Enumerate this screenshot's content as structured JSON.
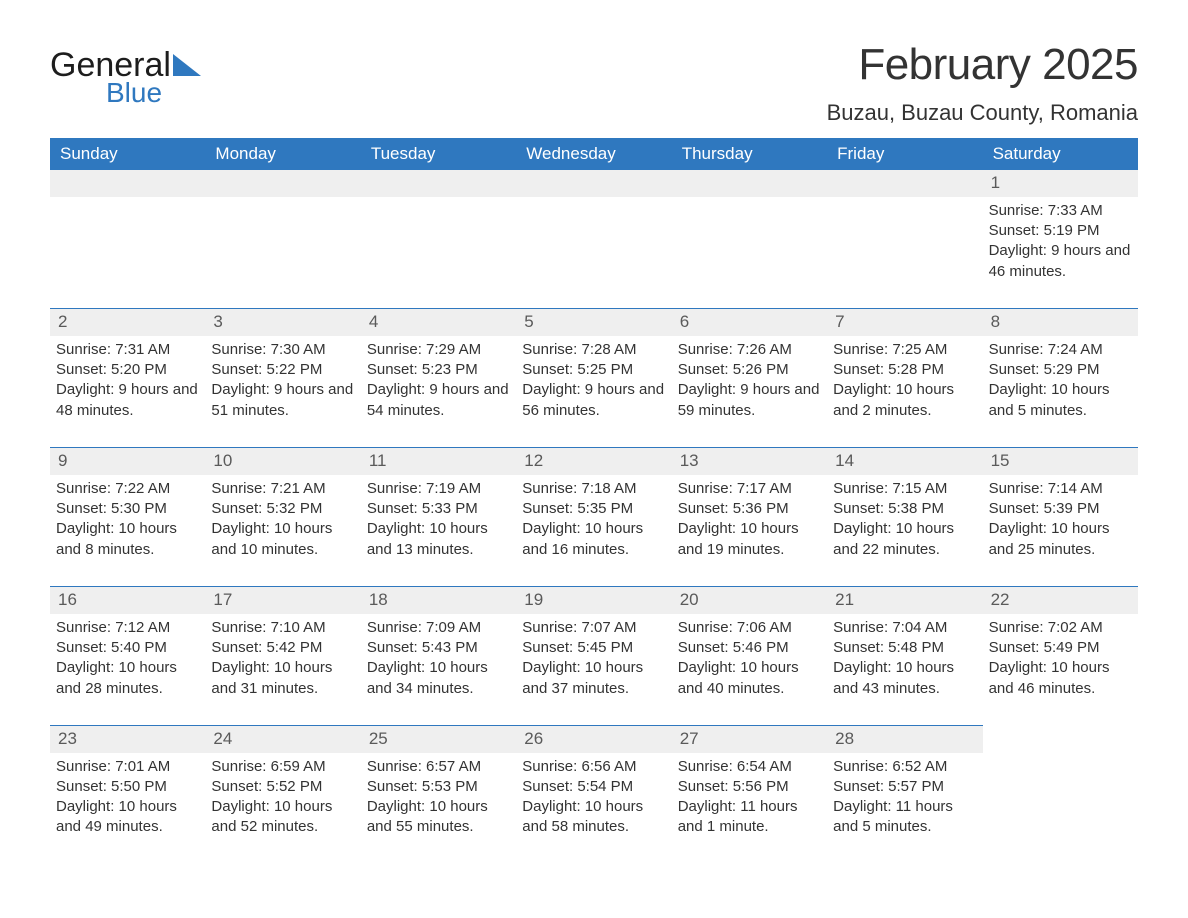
{
  "logo": {
    "word1": "General",
    "word2": "Blue",
    "accent_color": "#2f78bf"
  },
  "title": {
    "month": "February 2025",
    "location": "Buzau, Buzau County, Romania"
  },
  "colors": {
    "header_bg": "#2f78bf",
    "header_fg": "#ffffff",
    "daynum_bg": "#efefef",
    "daynum_border": "#2f78bf",
    "text": "#333333",
    "page_bg": "#ffffff"
  },
  "days_of_week": [
    "Sunday",
    "Monday",
    "Tuesday",
    "Wednesday",
    "Thursday",
    "Friday",
    "Saturday"
  ],
  "weeks": [
    [
      {
        "empty": true
      },
      {
        "empty": true
      },
      {
        "empty": true
      },
      {
        "empty": true
      },
      {
        "empty": true
      },
      {
        "empty": true
      },
      {
        "n": "1",
        "sunrise": "Sunrise: 7:33 AM",
        "sunset": "Sunset: 5:19 PM",
        "daylight": "Daylight: 9 hours and 46 minutes."
      }
    ],
    [
      {
        "n": "2",
        "sunrise": "Sunrise: 7:31 AM",
        "sunset": "Sunset: 5:20 PM",
        "daylight": "Daylight: 9 hours and 48 minutes."
      },
      {
        "n": "3",
        "sunrise": "Sunrise: 7:30 AM",
        "sunset": "Sunset: 5:22 PM",
        "daylight": "Daylight: 9 hours and 51 minutes."
      },
      {
        "n": "4",
        "sunrise": "Sunrise: 7:29 AM",
        "sunset": "Sunset: 5:23 PM",
        "daylight": "Daylight: 9 hours and 54 minutes."
      },
      {
        "n": "5",
        "sunrise": "Sunrise: 7:28 AM",
        "sunset": "Sunset: 5:25 PM",
        "daylight": "Daylight: 9 hours and 56 minutes."
      },
      {
        "n": "6",
        "sunrise": "Sunrise: 7:26 AM",
        "sunset": "Sunset: 5:26 PM",
        "daylight": "Daylight: 9 hours and 59 minutes."
      },
      {
        "n": "7",
        "sunrise": "Sunrise: 7:25 AM",
        "sunset": "Sunset: 5:28 PM",
        "daylight": "Daylight: 10 hours and 2 minutes."
      },
      {
        "n": "8",
        "sunrise": "Sunrise: 7:24 AM",
        "sunset": "Sunset: 5:29 PM",
        "daylight": "Daylight: 10 hours and 5 minutes."
      }
    ],
    [
      {
        "n": "9",
        "sunrise": "Sunrise: 7:22 AM",
        "sunset": "Sunset: 5:30 PM",
        "daylight": "Daylight: 10 hours and 8 minutes."
      },
      {
        "n": "10",
        "sunrise": "Sunrise: 7:21 AM",
        "sunset": "Sunset: 5:32 PM",
        "daylight": "Daylight: 10 hours and 10 minutes."
      },
      {
        "n": "11",
        "sunrise": "Sunrise: 7:19 AM",
        "sunset": "Sunset: 5:33 PM",
        "daylight": "Daylight: 10 hours and 13 minutes."
      },
      {
        "n": "12",
        "sunrise": "Sunrise: 7:18 AM",
        "sunset": "Sunset: 5:35 PM",
        "daylight": "Daylight: 10 hours and 16 minutes."
      },
      {
        "n": "13",
        "sunrise": "Sunrise: 7:17 AM",
        "sunset": "Sunset: 5:36 PM",
        "daylight": "Daylight: 10 hours and 19 minutes."
      },
      {
        "n": "14",
        "sunrise": "Sunrise: 7:15 AM",
        "sunset": "Sunset: 5:38 PM",
        "daylight": "Daylight: 10 hours and 22 minutes."
      },
      {
        "n": "15",
        "sunrise": "Sunrise: 7:14 AM",
        "sunset": "Sunset: 5:39 PM",
        "daylight": "Daylight: 10 hours and 25 minutes."
      }
    ],
    [
      {
        "n": "16",
        "sunrise": "Sunrise: 7:12 AM",
        "sunset": "Sunset: 5:40 PM",
        "daylight": "Daylight: 10 hours and 28 minutes."
      },
      {
        "n": "17",
        "sunrise": "Sunrise: 7:10 AM",
        "sunset": "Sunset: 5:42 PM",
        "daylight": "Daylight: 10 hours and 31 minutes."
      },
      {
        "n": "18",
        "sunrise": "Sunrise: 7:09 AM",
        "sunset": "Sunset: 5:43 PM",
        "daylight": "Daylight: 10 hours and 34 minutes."
      },
      {
        "n": "19",
        "sunrise": "Sunrise: 7:07 AM",
        "sunset": "Sunset: 5:45 PM",
        "daylight": "Daylight: 10 hours and 37 minutes."
      },
      {
        "n": "20",
        "sunrise": "Sunrise: 7:06 AM",
        "sunset": "Sunset: 5:46 PM",
        "daylight": "Daylight: 10 hours and 40 minutes."
      },
      {
        "n": "21",
        "sunrise": "Sunrise: 7:04 AM",
        "sunset": "Sunset: 5:48 PM",
        "daylight": "Daylight: 10 hours and 43 minutes."
      },
      {
        "n": "22",
        "sunrise": "Sunrise: 7:02 AM",
        "sunset": "Sunset: 5:49 PM",
        "daylight": "Daylight: 10 hours and 46 minutes."
      }
    ],
    [
      {
        "n": "23",
        "sunrise": "Sunrise: 7:01 AM",
        "sunset": "Sunset: 5:50 PM",
        "daylight": "Daylight: 10 hours and 49 minutes."
      },
      {
        "n": "24",
        "sunrise": "Sunrise: 6:59 AM",
        "sunset": "Sunset: 5:52 PM",
        "daylight": "Daylight: 10 hours and 52 minutes."
      },
      {
        "n": "25",
        "sunrise": "Sunrise: 6:57 AM",
        "sunset": "Sunset: 5:53 PM",
        "daylight": "Daylight: 10 hours and 55 minutes."
      },
      {
        "n": "26",
        "sunrise": "Sunrise: 6:56 AM",
        "sunset": "Sunset: 5:54 PM",
        "daylight": "Daylight: 10 hours and 58 minutes."
      },
      {
        "n": "27",
        "sunrise": "Sunrise: 6:54 AM",
        "sunset": "Sunset: 5:56 PM",
        "daylight": "Daylight: 11 hours and 1 minute."
      },
      {
        "n": "28",
        "sunrise": "Sunrise: 6:52 AM",
        "sunset": "Sunset: 5:57 PM",
        "daylight": "Daylight: 11 hours and 5 minutes."
      },
      {
        "empty": true,
        "noBar": true
      }
    ]
  ]
}
